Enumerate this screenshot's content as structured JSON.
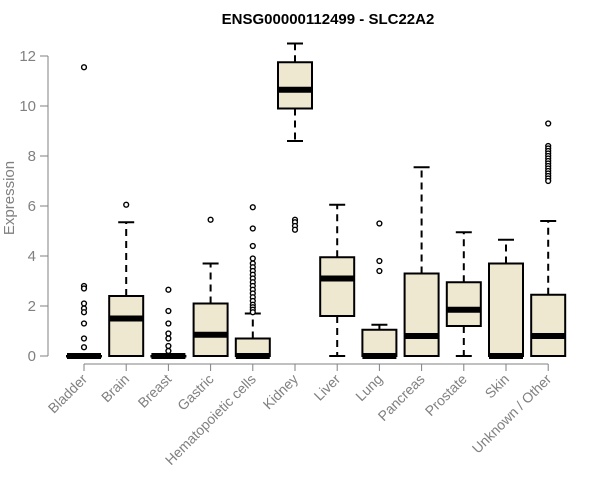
{
  "chart_data": {
    "type": "boxplot",
    "title": "ENSG00000112499 - SLC22A2",
    "ylabel": "Expression",
    "xlabel": "",
    "ylim": [
      0,
      12.5
    ],
    "yticks": [
      0,
      2,
      4,
      6,
      8,
      10,
      12
    ],
    "grid": false,
    "box_fill": "#efe8d0",
    "categories": [
      "Bladder",
      "Brain",
      "Breast",
      "Gastric",
      "Hematopoietic cells",
      "Kidney",
      "Liver",
      "Lung",
      "Pancreas",
      "Prostate",
      "Skin",
      "Unknown / Other"
    ],
    "boxes": [
      {
        "q1": 0,
        "median": 0,
        "q3": 0,
        "whisker_low": 0,
        "whisker_high": 0,
        "outliers": [
          11.55,
          2.8,
          2.7,
          2.1,
          1.9,
          1.75,
          1.3,
          0.7,
          0.35
        ]
      },
      {
        "q1": 0,
        "median": 1.5,
        "q3": 2.4,
        "whisker_low": 0,
        "whisker_high": 5.35,
        "outliers": [
          6.05
        ]
      },
      {
        "q1": 0,
        "median": 0,
        "q3": 0,
        "whisker_low": 0,
        "whisker_high": 0,
        "outliers": [
          2.65,
          1.8,
          1.3,
          0.9,
          0.7,
          0.4,
          0.2
        ]
      },
      {
        "q1": 0,
        "median": 0.85,
        "q3": 2.1,
        "whisker_low": 0,
        "whisker_high": 3.7,
        "outliers": [
          5.45
        ]
      },
      {
        "q1": 0,
        "median": 0,
        "q3": 0.7,
        "whisker_low": 0,
        "whisker_high": 1.7,
        "outliers": [
          5.95,
          5.1,
          4.4,
          3.9,
          3.7,
          3.55,
          3.4,
          3.25,
          3.1,
          2.95,
          2.8,
          2.65,
          2.5,
          2.35,
          2.2,
          2.05,
          1.95,
          1.85,
          1.75
        ]
      },
      {
        "q1": 9.9,
        "median": 10.65,
        "q3": 11.75,
        "whisker_low": 8.6,
        "whisker_high": 12.5,
        "outliers": [
          5.45,
          5.35,
          5.2,
          5.05
        ]
      },
      {
        "q1": 1.6,
        "median": 3.1,
        "q3": 3.95,
        "whisker_low": 0,
        "whisker_high": 6.05,
        "outliers": []
      },
      {
        "q1": 0,
        "median": 0,
        "q3": 1.05,
        "whisker_low": 0,
        "whisker_high": 1.25,
        "outliers": [
          5.3,
          3.8,
          3.4
        ]
      },
      {
        "q1": 0,
        "median": 0.8,
        "q3": 3.3,
        "whisker_low": 0,
        "whisker_high": 7.55,
        "outliers": []
      },
      {
        "q1": 1.2,
        "median": 1.85,
        "q3": 2.95,
        "whisker_low": 0,
        "whisker_high": 4.95,
        "outliers": []
      },
      {
        "q1": 0,
        "median": 0,
        "q3": 3.7,
        "whisker_low": 0,
        "whisker_high": 4.65,
        "outliers": []
      },
      {
        "q1": 0,
        "median": 0.8,
        "q3": 2.45,
        "whisker_low": 0,
        "whisker_high": 5.4,
        "outliers": [
          9.3,
          8.4,
          8.3,
          8.2,
          8.1,
          8.0,
          7.9,
          7.8,
          7.7,
          7.6,
          7.5,
          7.4,
          7.3,
          7.2,
          7.1,
          7.0
        ]
      }
    ]
  }
}
